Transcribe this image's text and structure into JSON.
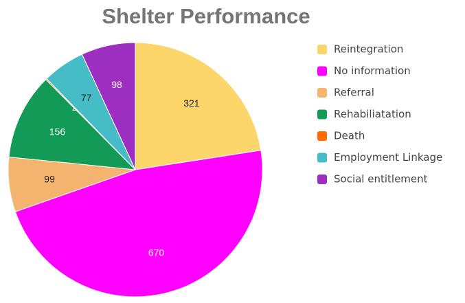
{
  "chart_data": {
    "type": "pie",
    "title": "Shelter Performance",
    "categories": [
      "Reintegration",
      "No information",
      "Referral",
      "Rehabiliatation",
      "Death",
      "Employment Linkage",
      "Social entitlement"
    ],
    "values": [
      321,
      670,
      99,
      156,
      2,
      77,
      98
    ],
    "colors": [
      "#fcd56b",
      "#ff00ff",
      "#f4b36f",
      "#129a56",
      "#ff6d01",
      "#46bdc6",
      "#9c2fbf"
    ],
    "legend": "right"
  }
}
